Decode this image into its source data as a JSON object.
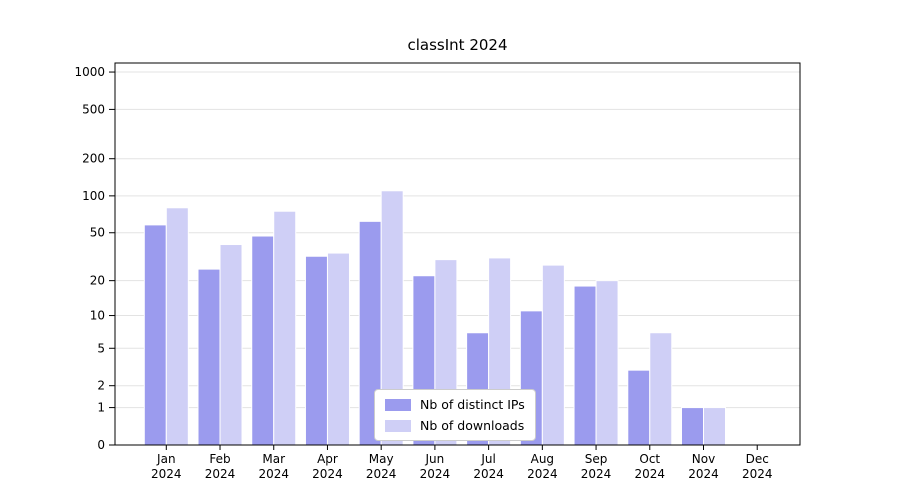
{
  "chart_data": {
    "type": "bar",
    "title": "classInt 2024",
    "categories": [
      {
        "month": "Jan",
        "year": "2024"
      },
      {
        "month": "Feb",
        "year": "2024"
      },
      {
        "month": "Mar",
        "year": "2024"
      },
      {
        "month": "Apr",
        "year": "2024"
      },
      {
        "month": "May",
        "year": "2024"
      },
      {
        "month": "Jun",
        "year": "2024"
      },
      {
        "month": "Jul",
        "year": "2024"
      },
      {
        "month": "Aug",
        "year": "2024"
      },
      {
        "month": "Sep",
        "year": "2024"
      },
      {
        "month": "Oct",
        "year": "2024"
      },
      {
        "month": "Nov",
        "year": "2024"
      },
      {
        "month": "Dec",
        "year": "2024"
      }
    ],
    "series": [
      {
        "name": "Nb of distinct IPs",
        "color": "#9b9bee",
        "values": [
          58,
          25,
          47,
          32,
          62,
          22,
          7,
          11,
          18,
          3,
          1,
          0
        ]
      },
      {
        "name": "Nb of downloads",
        "color": "#cfcff6",
        "values": [
          80,
          40,
          75,
          34,
          110,
          30,
          31,
          27,
          20,
          7,
          1,
          0
        ]
      }
    ],
    "yticks": [
      0,
      1,
      2,
      5,
      10,
      20,
      50,
      100,
      200,
      500,
      1000
    ],
    "y_scale": "log1p",
    "ylim": [
      0,
      1180
    ],
    "xlabel": "",
    "ylabel": "",
    "grid": "horizontal",
    "legend_position": "bottom-center"
  },
  "colors": {
    "grid": "#e3e3e3",
    "axis": "#000000",
    "background": "#ffffff",
    "legend_border": "#cccccc"
  }
}
